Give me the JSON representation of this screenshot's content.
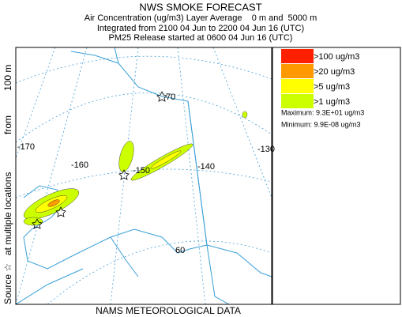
{
  "header": {
    "title": "NWS SMOKE FORECAST",
    "lines": [
      "Air Concentration (ug/m3) Layer Average    0 m and  5000 m",
      "Integrated from 2100 04 Jun to 2200 04 Jun 16 (UTC)",
      "PM25 Release started at 0600 04 Jun 16 (UTC)"
    ]
  },
  "side_label": {
    "source": "Source ☆",
    "locations": "at multiple locations",
    "from": "from",
    "height": "100 m"
  },
  "footer": "NAMS METEOROLOGICAL DATA",
  "legend": {
    "items": [
      {
        "label": ">100 ug/m3",
        "color": "#ff2000"
      },
      {
        "label": ">20 ug/m3",
        "color": "#ff9900"
      },
      {
        "label": ">5 ug/m3",
        "color": "#ffff00"
      },
      {
        "label": ">1 ug/m3",
        "color": "#ccff00"
      }
    ],
    "maximum": "Maximum: 9.3E+01 ug/m3",
    "minimum": "Minimum: 9.9E-08 ug/m3"
  },
  "map_labels": {
    "lon": [
      "-170",
      "-160",
      "-150",
      "-140",
      "-130"
    ],
    "lat": [
      "70",
      "60"
    ]
  }
}
